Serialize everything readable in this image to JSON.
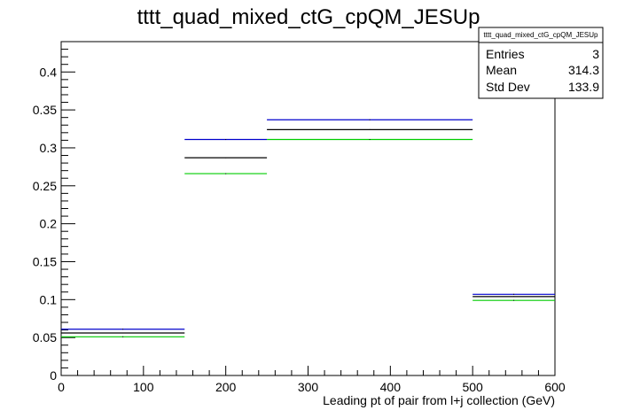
{
  "chart_data": {
    "type": "bar",
    "title": "tttt_quad_mixed_ctG_cpQM_JESUp",
    "xlabel": "Leading pt of pair from l+j collection (GeV)",
    "ylabel": "",
    "xlim": [
      0,
      600
    ],
    "ylim": [
      0,
      0.44
    ],
    "x_ticks": [
      0,
      100,
      200,
      300,
      400,
      500,
      600
    ],
    "y_ticks": [
      0,
      0.05,
      0.1,
      0.15,
      0.2,
      0.25,
      0.3,
      0.35,
      0.4
    ],
    "x_tick_labels": [
      "0",
      "100",
      "200",
      "300",
      "400",
      "500",
      "600"
    ],
    "y_tick_labels": [
      "0",
      "0.05",
      "0.1",
      "0.15",
      "0.2",
      "0.25",
      "0.3",
      "0.35",
      "0.4"
    ],
    "bin_edges": [
      0,
      150,
      250,
      500,
      600
    ],
    "series": [
      {
        "color": "#0000cc",
        "values": [
          0.061,
          0.311,
          0.337,
          0.107
        ]
      },
      {
        "color": "#000000",
        "values": [
          0.056,
          0.287,
          0.324,
          0.104
        ]
      },
      {
        "color": "#00cc00",
        "values": [
          0.051,
          0.266,
          0.311,
          0.099
        ]
      }
    ],
    "stats_box": {
      "title": "tttt_quad_mixed_ctG_cpQM_JESUp",
      "rows": [
        {
          "label": "Entries",
          "value": "3"
        },
        {
          "label": "Mean",
          "value": "314.3"
        },
        {
          "label": "Std Dev",
          "value": "133.9"
        }
      ]
    }
  }
}
